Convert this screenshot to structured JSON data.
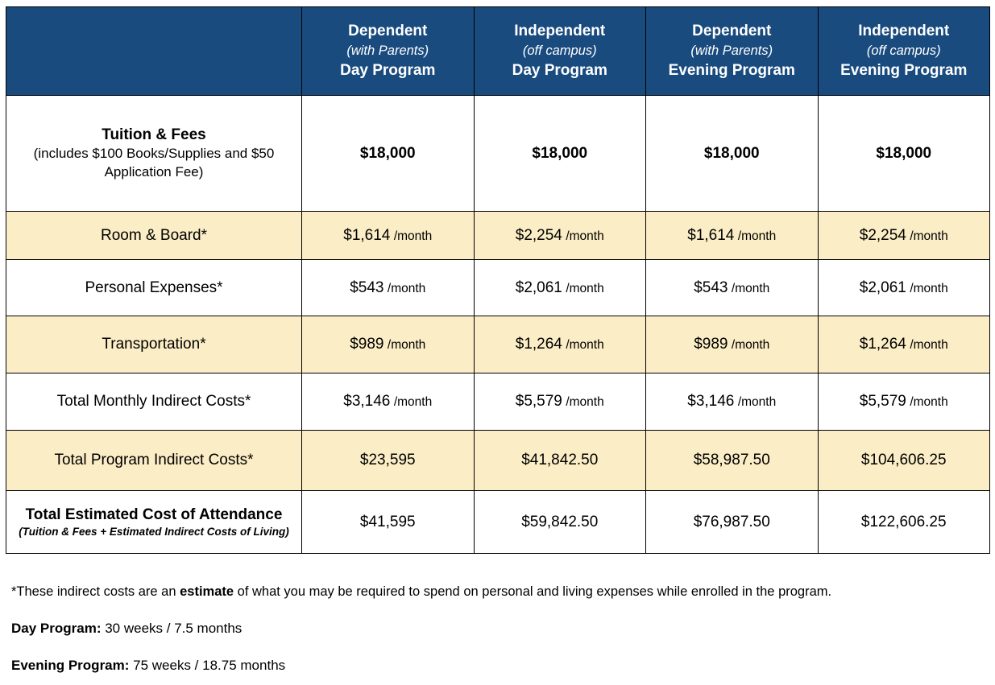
{
  "colors": {
    "header_bg": "#1a4b7e",
    "stripe_bg": "#fbedc5"
  },
  "table": {
    "header": {
      "corner": "",
      "columns": [
        {
          "line1": "Dependent",
          "line2": "(with Parents)",
          "line3": "Day Program"
        },
        {
          "line1": "Independent",
          "line2": "(off campus)",
          "line3": "Day Program"
        },
        {
          "line1": "Dependent",
          "line2": "(with Parents)",
          "line3": "Evening Program"
        },
        {
          "line1": "Independent",
          "line2": "(off campus)",
          "line3": "Evening Program"
        }
      ]
    },
    "rows": [
      {
        "label": "Tuition & Fees",
        "sublabel": "(includes $100 Books/Supplies and $50 Application Fee)",
        "sublabel_style": "normal",
        "bold_label": true,
        "bold_values": true,
        "shaded": false,
        "cells": [
          {
            "amount": "$18,000",
            "unit": ""
          },
          {
            "amount": "$18,000",
            "unit": ""
          },
          {
            "amount": "$18,000",
            "unit": ""
          },
          {
            "amount": "$18,000",
            "unit": ""
          }
        ]
      },
      {
        "label": "Room & Board*",
        "shaded": true,
        "cells": [
          {
            "amount": "$1,614",
            "unit": "/month"
          },
          {
            "amount": "$2,254",
            "unit": "/month"
          },
          {
            "amount": "$1,614",
            "unit": "/month"
          },
          {
            "amount": "$2,254",
            "unit": "/month"
          }
        ]
      },
      {
        "label": "Personal Expenses*",
        "shaded": false,
        "cells": [
          {
            "amount": "$543",
            "unit": "/month"
          },
          {
            "amount": "$2,061",
            "unit": "/month"
          },
          {
            "amount": "$543",
            "unit": "/month"
          },
          {
            "amount": "$2,061",
            "unit": "/month"
          }
        ]
      },
      {
        "label": "Transportation*",
        "shaded": true,
        "cells": [
          {
            "amount": "$989",
            "unit": "/month"
          },
          {
            "amount": "$1,264",
            "unit": "/month"
          },
          {
            "amount": "$989",
            "unit": "/month"
          },
          {
            "amount": "$1,264",
            "unit": "/month"
          }
        ]
      },
      {
        "label": "Total Monthly Indirect Costs*",
        "shaded": false,
        "cells": [
          {
            "amount": "$3,146",
            "unit": "/month"
          },
          {
            "amount": "$5,579",
            "unit": "/month"
          },
          {
            "amount": "$3,146",
            "unit": "/month"
          },
          {
            "amount": "$5,579",
            "unit": "/month"
          }
        ]
      },
      {
        "label": "Total Program Indirect Costs*",
        "shaded": true,
        "cells": [
          {
            "amount": "$23,595",
            "unit": ""
          },
          {
            "amount": "$41,842.50",
            "unit": ""
          },
          {
            "amount": "$58,987.50",
            "unit": ""
          },
          {
            "amount": "$104,606.25",
            "unit": ""
          }
        ]
      },
      {
        "label": "Total Estimated Cost of Attendance",
        "sublabel": "(Tuition & Fees + Estimated Indirect Costs of Living)",
        "sublabel_style": "italic",
        "bold_label": true,
        "shaded": false,
        "cells": [
          {
            "amount": "$41,595",
            "unit": ""
          },
          {
            "amount": "$59,842.50",
            "unit": ""
          },
          {
            "amount": "$76,987.50",
            "unit": ""
          },
          {
            "amount": "$122,606.25",
            "unit": ""
          }
        ]
      }
    ]
  },
  "notes": {
    "asterisk_prefix": "*These indirect costs are an ",
    "asterisk_bold": "estimate",
    "asterisk_suffix": " of what you may be required to spend on personal and living expenses while enrolled in the program.",
    "day_label": "Day Program:",
    "day_text": " 30 weeks / 7.5 months",
    "evening_label": "Evening Program:",
    "evening_text": " 75 weeks / 18.75 months"
  }
}
